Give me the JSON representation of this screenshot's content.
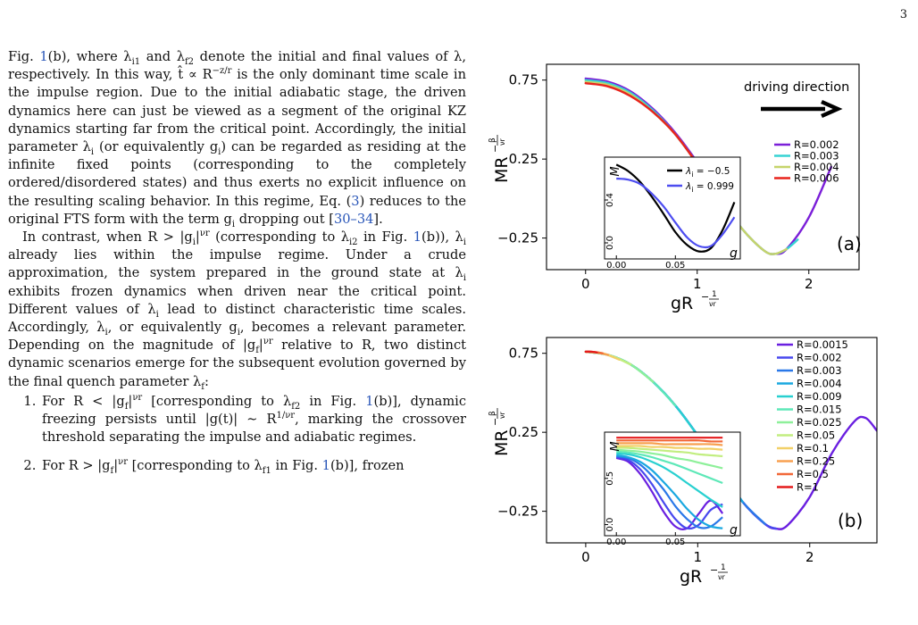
{
  "page_number": "3",
  "text": {
    "p1_a": "Fig. ",
    "ref_fig1": "1",
    "p1_b": "(b), where λ",
    "p1_c": " and λ",
    "p1_d": " denote the initial and final values of λ, respectively. In this way, t̂ ∝ R",
    "p1_e": " is the only dominant time scale in the impulse region. Due to the initial adiabatic stage, the driven dynamics here can just be viewed as a segment of the original KZ dynamics starting far from the critical point. Accordingly, the initial parameter λ",
    "p1_f": " (or equivalently g",
    "p1_g": ") can be regarded as residing at the infinite fixed points (corresponding to the completely ordered/disordered states) and thus exerts no explicit influence on the resulting scaling behavior. In this regime, Eq. (",
    "ref_eq3": "3",
    "p1_h": ") reduces to the original FTS form with the term g",
    "p1_i": " dropping out [",
    "ref_30_34": "30–34",
    "p1_j": "].",
    "p2_a": "In contrast, when R > |g",
    "p2_b": "|",
    "p2_c": " (corresponding to λ",
    "p2_d": " in Fig. ",
    "p2_e": "(b)), λ",
    "p2_f": " already lies within the impulse regime. Under a crude approximation, the system prepared in the ground state at λ",
    "p2_g": " exhibits frozen dynamics when driven near the critical point. Different values of λ",
    "p2_h": " lead to distinct characteristic time scales. Accordingly, λ",
    "p2_i": ", or equivalently g",
    "p2_j": ", becomes a relevant parameter. Depending on the magnitude of |g",
    "p2_k": "|",
    "p2_l": " relative to R, two distinct dynamic scenarios emerge for the subsequent evolution governed by the final quench parameter λ",
    "p2_m": ":",
    "li1_a": "For R < |g",
    "li1_b": "|",
    "li1_c": " [corresponding to λ",
    "li1_d": " in Fig. ",
    "li1_e": "(b)], dynamic freezing persists until |g(t)| ∼ R",
    "li1_f": ", marking the crossover threshold separating the impulse and adiabatic regimes.",
    "li2_a": "For R > |g",
    "li2_b": "|",
    "li2_c": " [corresponding to λ",
    "li2_d": " in Fig. ",
    "li2_e": "(b)], frozen",
    "sub_i1": "i1",
    "sub_f2": "f2",
    "sub_i": "i",
    "sub_f": "f",
    "sub_i2": "i2",
    "sub_f1": "f1",
    "sup_zr": "−z/r",
    "sup_vr": "νr",
    "sup_1vr": "1/νr"
  },
  "figure": {
    "axis_ylabel_main": "MR",
    "axis_ylabel_exp_num": "β",
    "axis_ylabel_exp_den": "νr",
    "axis_xlabel_main": "gR",
    "axis_xlabel_exp_num": "1",
    "axis_xlabel_exp_den": "νr",
    "minus": "−",
    "inset_ylabel": "M",
    "inset_xlabel": "g",
    "panel_a_label": "(a)",
    "panel_b_label": "(b)",
    "driving_text": "driving direction",
    "colors": {
      "purple": "#7b1fd8",
      "cyan": "#36d3d3",
      "yellowgreen": "#c6d46a",
      "red": "#e8231c",
      "black": "#000000",
      "blue": "#4d4df0"
    }
  },
  "chart_data": [
    {
      "type": "line",
      "panel": "(a)",
      "xlabel": "gR^{-1/νr}",
      "ylabel": "MR^{-β/νr}",
      "xlim": [
        -0.35,
        2.45
      ],
      "ylim": [
        -0.45,
        0.85
      ],
      "x_ticks": [
        "0",
        "1",
        "2"
      ],
      "y_ticks": [
        "0.75",
        "0.25",
        "−0.25"
      ],
      "legend_position": "center-right",
      "annotation": "driving direction",
      "series": [
        {
          "name": "R=0.002",
          "color": "#7b1fd8",
          "x": [
            0.0,
            0.2,
            0.4,
            0.6,
            0.8,
            1.0,
            1.2,
            1.4,
            1.6,
            1.7,
            1.8,
            2.0,
            2.2
          ],
          "y": [
            0.76,
            0.74,
            0.68,
            0.57,
            0.42,
            0.23,
            0.02,
            -0.19,
            -0.33,
            -0.35,
            -0.32,
            -0.12,
            0.2
          ]
        },
        {
          "name": "R=0.003",
          "color": "#36d3d3",
          "x": [
            0.0,
            0.2,
            0.4,
            0.6,
            0.8,
            1.0,
            1.2,
            1.4,
            1.6,
            1.7,
            1.8,
            1.9
          ],
          "y": [
            0.75,
            0.73,
            0.67,
            0.56,
            0.41,
            0.22,
            0.02,
            -0.19,
            -0.33,
            -0.35,
            -0.32,
            -0.26
          ]
        },
        {
          "name": "R=0.004",
          "color": "#c6d46a",
          "x": [
            0.0,
            0.2,
            0.4,
            0.6,
            0.8,
            1.0,
            1.2,
            1.4,
            1.6,
            1.7,
            1.8
          ],
          "y": [
            0.74,
            0.72,
            0.66,
            0.55,
            0.41,
            0.22,
            0.02,
            -0.19,
            -0.33,
            -0.35,
            -0.32
          ]
        },
        {
          "name": "R=0.006",
          "color": "#e8231c",
          "x": [
            0.0,
            0.2,
            0.4,
            0.6,
            0.8,
            1.0,
            1.2,
            1.3
          ],
          "y": [
            0.73,
            0.71,
            0.65,
            0.55,
            0.41,
            0.22,
            0.02,
            -0.08
          ]
        }
      ],
      "inset": {
        "xlabel": "g",
        "ylabel": "M",
        "x_ticks": [
          "0.00",
          "0.05"
        ],
        "y_ticks": [
          "0.0",
          "0.4"
        ],
        "xlim": [
          -0.01,
          0.105
        ],
        "ylim": [
          -0.15,
          0.8
        ],
        "legend_position": "top-right",
        "series": [
          {
            "name": "λ_i = −0.5",
            "label_text": "λ",
            "label_sub": "i",
            "label_rest": " = −0.5",
            "color": "#000000",
            "x": [
              0.0,
              0.01,
              0.02,
              0.03,
              0.04,
              0.05,
              0.06,
              0.07,
              0.08,
              0.09,
              0.1
            ],
            "y": [
              0.73,
              0.67,
              0.57,
              0.43,
              0.27,
              0.1,
              -0.02,
              -0.08,
              -0.05,
              0.12,
              0.38
            ]
          },
          {
            "name": "λ_i = 0.999",
            "label_text": "λ",
            "label_sub": "i",
            "label_rest": " = 0.999",
            "color": "#4d4df0",
            "x": [
              0.0,
              0.01,
              0.02,
              0.03,
              0.04,
              0.05,
              0.06,
              0.07,
              0.08,
              0.09,
              0.1
            ],
            "y": [
              0.6,
              0.59,
              0.55,
              0.46,
              0.34,
              0.19,
              0.05,
              -0.03,
              -0.03,
              0.08,
              0.24
            ]
          }
        ]
      }
    },
    {
      "type": "line",
      "panel": "(b)",
      "xlabel": "gR^{-1/νr}",
      "ylabel": "MR^{-β/νr}",
      "xlim": [
        -0.35,
        2.6
      ],
      "ylim": [
        -0.45,
        0.85
      ],
      "x_ticks": [
        "0",
        "1",
        "2"
      ],
      "y_ticks": [
        "0.75",
        "0.25",
        "−0.25"
      ],
      "legend_position": "top-right",
      "series": [
        {
          "name": "R=0.0015",
          "color": "#6a1fe0",
          "x": [
            0.0,
            0.2,
            0.4,
            0.6,
            0.8,
            1.0,
            1.2,
            1.4,
            1.6,
            1.7,
            1.8,
            2.0,
            2.2,
            2.4,
            2.5,
            2.6
          ],
          "y": [
            0.76,
            0.74,
            0.68,
            0.57,
            0.42,
            0.23,
            0.02,
            -0.19,
            -0.33,
            -0.36,
            -0.34,
            -0.16,
            0.12,
            0.32,
            0.34,
            0.26
          ]
        },
        {
          "name": "R=0.002",
          "color": "#4848ee",
          "x": [
            0.0,
            0.2,
            0.4,
            0.6,
            0.8,
            1.0,
            1.2,
            1.4,
            1.6,
            1.7
          ],
          "y": [
            0.76,
            0.74,
            0.68,
            0.57,
            0.42,
            0.23,
            0.02,
            -0.19,
            -0.33,
            -0.36
          ]
        },
        {
          "name": "R=0.003",
          "color": "#2a78e8",
          "x": [
            0.0,
            0.2,
            0.4,
            0.6,
            0.8,
            1.0,
            1.2,
            1.4,
            1.6
          ],
          "y": [
            0.76,
            0.74,
            0.68,
            0.57,
            0.42,
            0.23,
            0.02,
            -0.19,
            -0.33
          ]
        },
        {
          "name": "R=0.004",
          "color": "#1aa8e0",
          "x": [
            0.0,
            0.2,
            0.4,
            0.6,
            0.8,
            1.0,
            1.2,
            1.4
          ],
          "y": [
            0.76,
            0.74,
            0.68,
            0.57,
            0.42,
            0.23,
            0.02,
            -0.19
          ]
        },
        {
          "name": "R=0.009",
          "color": "#28d0d0",
          "x": [
            0.0,
            0.2,
            0.4,
            0.6,
            0.8,
            1.0
          ],
          "y": [
            0.76,
            0.74,
            0.68,
            0.57,
            0.42,
            0.23
          ]
        },
        {
          "name": "R=0.015",
          "color": "#5ee8b8",
          "x": [
            0.0,
            0.2,
            0.4,
            0.6,
            0.8
          ],
          "y": [
            0.76,
            0.74,
            0.68,
            0.57,
            0.42
          ]
        },
        {
          "name": "R=0.025",
          "color": "#8ef09a",
          "x": [
            0.0,
            0.2,
            0.4,
            0.6
          ],
          "y": [
            0.76,
            0.74,
            0.68,
            0.57
          ]
        },
        {
          "name": "R=0.05",
          "color": "#c2ee80",
          "x": [
            0.0,
            0.2,
            0.4
          ],
          "y": [
            0.76,
            0.74,
            0.68
          ]
        },
        {
          "name": "R=0.1",
          "color": "#f2d068",
          "x": [
            0.0,
            0.15,
            0.3
          ],
          "y": [
            0.76,
            0.75,
            0.71
          ]
        },
        {
          "name": "R=0.25",
          "color": "#f8a050",
          "x": [
            0.0,
            0.1,
            0.2
          ],
          "y": [
            0.76,
            0.755,
            0.74
          ]
        },
        {
          "name": "R=0.5",
          "color": "#f26838",
          "x": [
            0.0,
            0.08,
            0.15
          ],
          "y": [
            0.76,
            0.758,
            0.75
          ]
        },
        {
          "name": "R=1",
          "color": "#e41a1c",
          "x": [
            0.0,
            0.05,
            0.1
          ],
          "y": [
            0.76,
            0.76,
            0.755
          ]
        }
      ],
      "inset": {
        "xlabel": "g",
        "ylabel": "M",
        "x_ticks": [
          "0.00",
          "0.05"
        ],
        "y_ticks": [
          "0.0",
          "0.5"
        ],
        "xlim": [
          -0.01,
          0.105
        ],
        "ylim": [
          -0.12,
          1.0
        ],
        "series": [
          {
            "color": "#6a1fe0",
            "x": [
              0.0,
              0.01,
              0.02,
              0.03,
              0.04,
              0.05,
              0.06,
              0.07,
              0.08,
              0.09
            ],
            "y": [
              0.72,
              0.68,
              0.55,
              0.36,
              0.14,
              -0.02,
              -0.04,
              0.12,
              0.26,
              0.12
            ]
          },
          {
            "color": "#4848ee",
            "x": [
              0.0,
              0.01,
              0.02,
              0.03,
              0.04,
              0.05,
              0.06,
              0.07,
              0.08,
              0.09
            ],
            "y": [
              0.73,
              0.7,
              0.6,
              0.44,
              0.24,
              0.06,
              -0.04,
              0.0,
              0.16,
              0.22
            ]
          },
          {
            "color": "#2a78e8",
            "x": [
              0.0,
              0.01,
              0.02,
              0.03,
              0.04,
              0.05,
              0.06,
              0.07,
              0.08,
              0.09
            ],
            "y": [
              0.74,
              0.72,
              0.65,
              0.53,
              0.38,
              0.2,
              0.06,
              -0.03,
              -0.02,
              0.08
            ]
          },
          {
            "color": "#1aa8e0",
            "x": [
              0.0,
              0.01,
              0.02,
              0.03,
              0.04,
              0.05,
              0.06,
              0.07,
              0.08,
              0.09
            ],
            "y": [
              0.75,
              0.73,
              0.68,
              0.59,
              0.46,
              0.32,
              0.17,
              0.05,
              -0.02,
              -0.04
            ]
          },
          {
            "color": "#28d0d0",
            "x": [
              0.0,
              0.01,
              0.02,
              0.03,
              0.04,
              0.05,
              0.06,
              0.07,
              0.08,
              0.09
            ],
            "y": [
              0.77,
              0.76,
              0.73,
              0.68,
              0.62,
              0.54,
              0.45,
              0.36,
              0.27,
              0.19
            ]
          },
          {
            "color": "#5ee8b8",
            "x": [
              0.0,
              0.01,
              0.02,
              0.03,
              0.04,
              0.05,
              0.06,
              0.07,
              0.08,
              0.09
            ],
            "y": [
              0.79,
              0.78,
              0.76,
              0.73,
              0.69,
              0.65,
              0.6,
              0.55,
              0.5,
              0.45
            ]
          },
          {
            "color": "#8ef09a",
            "x": [
              0.0,
              0.01,
              0.02,
              0.03,
              0.04,
              0.05,
              0.06,
              0.07,
              0.08,
              0.09
            ],
            "y": [
              0.81,
              0.8,
              0.79,
              0.77,
              0.75,
              0.72,
              0.7,
              0.67,
              0.64,
              0.61
            ]
          },
          {
            "color": "#c2ee80",
            "x": [
              0.0,
              0.01,
              0.02,
              0.03,
              0.04,
              0.05,
              0.06,
              0.07,
              0.08,
              0.09
            ],
            "y": [
              0.83,
              0.83,
              0.82,
              0.81,
              0.8,
              0.79,
              0.78,
              0.76,
              0.75,
              0.74
            ]
          },
          {
            "color": "#f2d068",
            "x": [
              0.0,
              0.01,
              0.02,
              0.03,
              0.04,
              0.05,
              0.06,
              0.07,
              0.08,
              0.09
            ],
            "y": [
              0.85,
              0.85,
              0.85,
              0.84,
              0.84,
              0.83,
              0.83,
              0.82,
              0.82,
              0.81
            ]
          },
          {
            "color": "#f8a050",
            "x": [
              0.0,
              0.01,
              0.02,
              0.03,
              0.04,
              0.05,
              0.06,
              0.07,
              0.08,
              0.09
            ],
            "y": [
              0.88,
              0.88,
              0.88,
              0.88,
              0.87,
              0.87,
              0.87,
              0.87,
              0.87,
              0.86
            ]
          },
          {
            "color": "#f26838",
            "x": [
              0.0,
              0.01,
              0.02,
              0.03,
              0.04,
              0.05,
              0.06,
              0.07,
              0.08,
              0.09
            ],
            "y": [
              0.91,
              0.91,
              0.91,
              0.91,
              0.91,
              0.91,
              0.91,
              0.91,
              0.9,
              0.9
            ]
          },
          {
            "color": "#e41a1c",
            "x": [
              0.0,
              0.01,
              0.02,
              0.03,
              0.04,
              0.05,
              0.06,
              0.07,
              0.08,
              0.09
            ],
            "y": [
              0.94,
              0.94,
              0.94,
              0.94,
              0.94,
              0.94,
              0.94,
              0.94,
              0.94,
              0.94
            ]
          }
        ]
      }
    }
  ]
}
